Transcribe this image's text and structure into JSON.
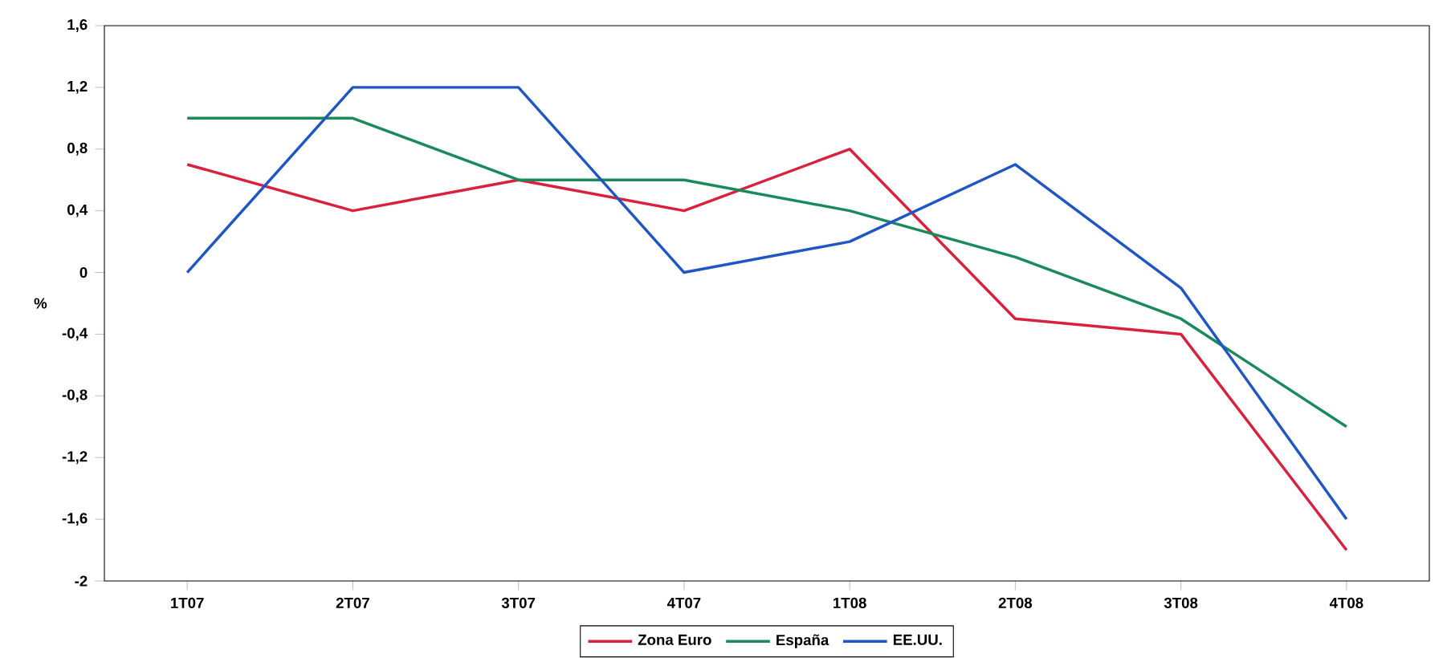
{
  "chart_data": {
    "type": "line",
    "ylabel": "%",
    "categories": [
      "1T07",
      "2T07",
      "3T07",
      "4T07",
      "1T08",
      "2T08",
      "3T08",
      "4T08"
    ],
    "series": [
      {
        "name": "Zona Euro",
        "color": "#d9213f",
        "values": [
          0.7,
          0.4,
          0.6,
          0.4,
          0.8,
          -0.3,
          -0.4,
          -1.8
        ]
      },
      {
        "name": "España",
        "color": "#1a8a5a",
        "values": [
          1.0,
          1.0,
          0.6,
          0.6,
          0.4,
          0.1,
          -0.3,
          -1.0
        ]
      },
      {
        "name": "EE.UU.",
        "color": "#1f56c4",
        "values": [
          0,
          1.2,
          1.2,
          0,
          0.2,
          0.7,
          -0.1,
          -1.6
        ]
      }
    ],
    "ylim": [
      -2,
      1.6
    ],
    "yticks": [
      {
        "value": -2,
        "label": "-2"
      },
      {
        "value": -1.6,
        "label": "-1,6"
      },
      {
        "value": -1.2,
        "label": "-1,2"
      },
      {
        "value": -0.8,
        "label": "-0,8"
      },
      {
        "value": -0.4,
        "label": "-0,4"
      },
      {
        "value": 0,
        "label": "0"
      },
      {
        "value": 0.4,
        "label": "0,4"
      },
      {
        "value": 0.8,
        "label": "0,8"
      },
      {
        "value": 1.2,
        "label": "1,2"
      },
      {
        "value": 1.6,
        "label": "1,6"
      }
    ],
    "grid": false,
    "legend": "bottom",
    "marker": "none",
    "line_style": "solid"
  }
}
